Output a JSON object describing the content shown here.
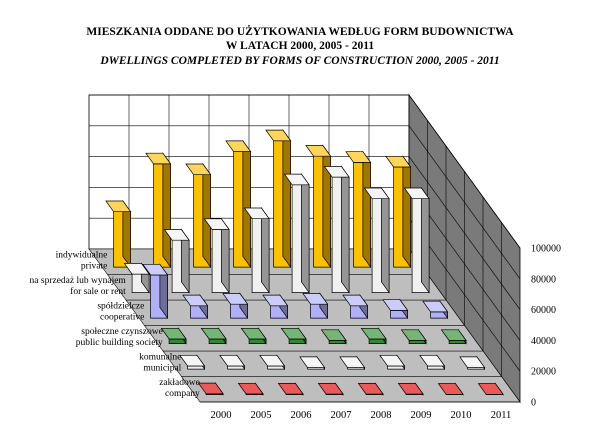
{
  "chart_data": {
    "type": "bar",
    "title_line1": "MIESZKANIA ODDANE DO UŻYTKOWANIA WEDŁUG FORM BUDOWNICTWA",
    "title_line2": "W LATACH  2000,  2005 - 2011",
    "subtitle": "DWELLINGS COMPLETED BY FORMS OF CONSTRUCTION 2000,  2005 - 2011",
    "categories": [
      "2000",
      "2005",
      "2006",
      "2007",
      "2008",
      "2009",
      "2010",
      "2011"
    ],
    "y_ticks": [
      "0",
      "20000",
      "40000",
      "60000",
      "80000",
      "100000"
    ],
    "ylim": [
      0,
      100000
    ],
    "series": [
      {
        "name_pl": "indywidualne",
        "name_en": "private",
        "color": "#FFC000",
        "values": [
          36000,
          67000,
          60000,
          75000,
          82000,
          72000,
          68000,
          65000
        ]
      },
      {
        "name_pl": "na sprzedaż lub wynajem",
        "name_en": "for sale or rent",
        "color": "#F0F0F0",
        "values": [
          12000,
          34000,
          41000,
          48000,
          70000,
          75000,
          61000,
          61000
        ]
      },
      {
        "name_pl": "spółdzielcze",
        "name_en": "cooperative",
        "color": "#B0B0F8",
        "values": [
          28000,
          8000,
          9000,
          8000,
          9000,
          8000,
          5000,
          4000
        ]
      },
      {
        "name_pl": "społeczne czynszowe",
        "name_en": "public building society",
        "color": "#2E8B2E",
        "values": [
          3000,
          3000,
          3000,
          3000,
          2000,
          3000,
          2000,
          2000
        ]
      },
      {
        "name_pl": "komunalne",
        "name_en": "municipal",
        "color": "#F0F0F0",
        "values": [
          2000,
          2000,
          2000,
          1000,
          1000,
          2000,
          2000,
          1000
        ]
      },
      {
        "name_pl": "zakładowe",
        "name_en": "company",
        "color": "#E00000",
        "values": [
          500,
          400,
          300,
          300,
          300,
          300,
          200,
          200
        ]
      }
    ]
  }
}
